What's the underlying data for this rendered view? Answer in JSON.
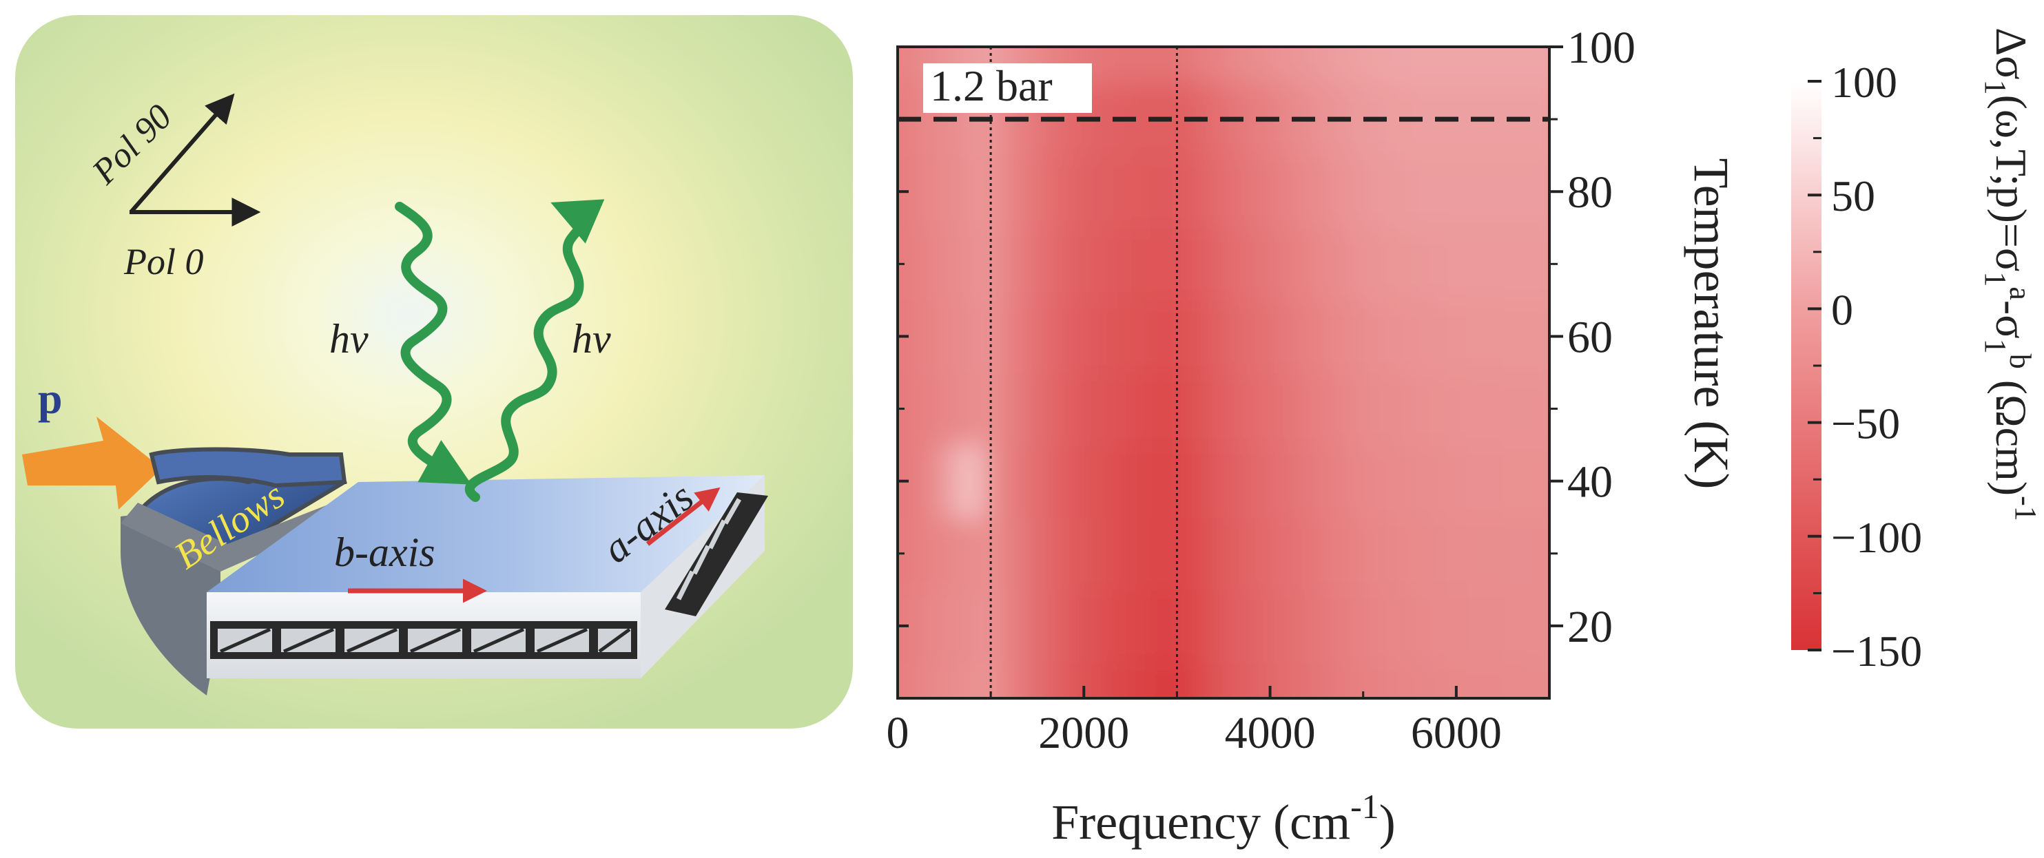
{
  "schematic": {
    "pol_90": "Pol 90",
    "pol_0": "Pol 0",
    "photon_in": "hν",
    "photon_out": "hν",
    "pressure": "p",
    "bellows": "Bellows",
    "b_axis": "b-axis",
    "a_axis": "a-axis",
    "colors": {
      "background": "#c9dfa6",
      "glow": "#f7f6c6",
      "wave": "#2f9a4e",
      "pressure_arrow": "#f0952f",
      "axis_arrow": "#d83a3a",
      "sample_top": "#9bb8e4"
    }
  },
  "chart_data": {
    "type": "heatmap",
    "title": "",
    "xlabel": "Frequency (cm",
    "xlabel_sup": "-1",
    "xlabel_end": ")",
    "ylabel": "Temperature (K)",
    "xlim": [
      0,
      7000
    ],
    "ylim": [
      10,
      100
    ],
    "x_ticks": [
      0,
      2000,
      4000,
      6000
    ],
    "x_tick_labels": [
      "0",
      "2000",
      "4000",
      "6000"
    ],
    "y_ticks": [
      20,
      40,
      60,
      80,
      100
    ],
    "y_tick_labels": [
      "20",
      "40",
      "60",
      "80",
      "100"
    ],
    "y_axis_position": "right",
    "annotation": "1.2 bar",
    "dashed_line_T": 90,
    "dotted_lines_freq": [
      1000,
      3000
    ],
    "x_samples": [
      0,
      200,
      400,
      600,
      800,
      1000,
      1200,
      1400,
      1600,
      1800,
      2000,
      2200,
      2400,
      2600,
      2800,
      3000,
      3200,
      3400,
      3600,
      3800,
      4000,
      4200,
      4400,
      4600,
      4800,
      5000,
      5200,
      5400,
      5600,
      5800,
      6000,
      6200,
      6400,
      6600,
      6800,
      7000
    ],
    "y_samples": [
      10,
      20,
      30,
      40,
      50,
      60,
      70,
      80,
      90,
      100
    ],
    "z_values": [
      [
        -60,
        -50,
        -45,
        -40,
        -35,
        -30,
        -55,
        -70,
        -85,
        -100,
        -110,
        -118,
        -125,
        -132,
        -138,
        -140,
        -125,
        -110,
        -100,
        -92,
        -85,
        -78,
        -72,
        -66,
        -60,
        -55,
        -52,
        -50,
        -48,
        -46,
        -45,
        -44,
        -44,
        -43,
        -42,
        -42
      ],
      [
        -62,
        -52,
        -47,
        -42,
        -38,
        -32,
        -55,
        -70,
        -85,
        -98,
        -108,
        -115,
        -120,
        -126,
        -130,
        -132,
        -120,
        -108,
        -98,
        -90,
        -84,
        -77,
        -70,
        -64,
        -58,
        -52,
        -49,
        -47,
        -45,
        -43,
        -42,
        -41,
        -41,
        -40,
        -40,
        -40
      ],
      [
        -64,
        -55,
        -50,
        -45,
        -40,
        -34,
        -56,
        -70,
        -84,
        -96,
        -105,
        -112,
        -118,
        -122,
        -126,
        -128,
        -118,
        -106,
        -96,
        -88,
        -82,
        -75,
        -68,
        -62,
        -56,
        -50,
        -47,
        -45,
        -43,
        -41,
        -40,
        -39,
        -39,
        -38,
        -38,
        -38
      ],
      [
        -66,
        -58,
        -40,
        -5,
        30,
        -34,
        -58,
        -72,
        -86,
        -98,
        -106,
        -112,
        -118,
        -122,
        -125,
        -126,
        -116,
        -104,
        -94,
        -86,
        -80,
        -72,
        -64,
        -58,
        -52,
        -46,
        -44,
        -42,
        -40,
        -38,
        -37,
        -36,
        -36,
        -35,
        -35,
        -35
      ],
      [
        -65,
        -57,
        -52,
        -46,
        -40,
        -34,
        -56,
        -70,
        -84,
        -95,
        -103,
        -108,
        -113,
        -117,
        -120,
        -120,
        -111,
        -100,
        -90,
        -82,
        -76,
        -68,
        -60,
        -54,
        -48,
        -42,
        -40,
        -38,
        -36,
        -35,
        -34,
        -33,
        -33,
        -32,
        -32,
        -32
      ],
      [
        -64,
        -56,
        -50,
        -44,
        -38,
        -32,
        -54,
        -68,
        -82,
        -92,
        -100,
        -105,
        -109,
        -112,
        -114,
        -114,
        -106,
        -96,
        -86,
        -78,
        -72,
        -64,
        -56,
        -50,
        -44,
        -38,
        -36,
        -34,
        -32,
        -31,
        -30,
        -29,
        -29,
        -28,
        -28,
        -28
      ],
      [
        -63,
        -54,
        -48,
        -42,
        -36,
        -30,
        -52,
        -66,
        -79,
        -89,
        -96,
        -100,
        -104,
        -106,
        -108,
        -108,
        -100,
        -90,
        -80,
        -72,
        -66,
        -58,
        -50,
        -44,
        -38,
        -32,
        -30,
        -28,
        -26,
        -25,
        -24,
        -24,
        -24,
        -24,
        -24,
        -24
      ],
      [
        -62,
        -52,
        -46,
        -40,
        -34,
        -28,
        -50,
        -63,
        -76,
        -86,
        -92,
        -96,
        -99,
        -101,
        -102,
        -102,
        -94,
        -84,
        -74,
        -66,
        -60,
        -52,
        -44,
        -38,
        -32,
        -26,
        -24,
        -22,
        -20,
        -20,
        -20,
        -20,
        -20,
        -20,
        -20,
        -20
      ],
      [
        -60,
        -50,
        -44,
        -38,
        -32,
        -26,
        -48,
        -60,
        -72,
        -82,
        -88,
        -92,
        -94,
        -96,
        -96,
        -96,
        -88,
        -78,
        -68,
        -60,
        -54,
        -46,
        -38,
        -32,
        -27,
        -22,
        -20,
        -18,
        -17,
        -17,
        -17,
        -17,
        -17,
        -17,
        -17,
        -17
      ],
      [
        -55,
        -45,
        -38,
        -30,
        -22,
        -15,
        -30,
        -40,
        -50,
        -58,
        -64,
        -68,
        -70,
        -70,
        -70,
        -70,
        -62,
        -54,
        -46,
        -40,
        -36,
        -30,
        -26,
        -22,
        -18,
        -14,
        -12,
        -10,
        -9,
        -9,
        -9,
        -9,
        -9,
        -9,
        -9,
        -9
      ]
    ],
    "colorbar": {
      "label": "Δσ",
      "label_full": "Δσ1(ω,T;p)=σ1a-σ1b (Ωcm)-1",
      "range": [
        -150,
        100
      ],
      "ticks": [
        100,
        50,
        0,
        -50,
        -100,
        -150
      ],
      "tick_labels": [
        "100",
        "50",
        "0",
        "−50",
        "−100",
        "−150"
      ],
      "color_low": "#d83336",
      "color_high": "#ffffff"
    }
  }
}
